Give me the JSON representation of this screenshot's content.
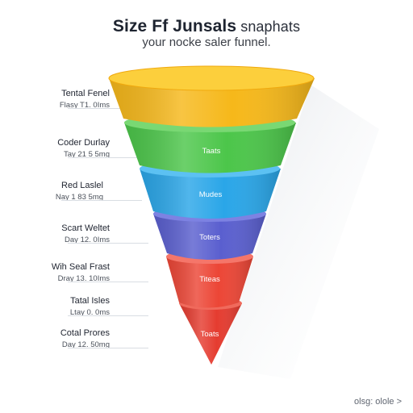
{
  "header": {
    "title": "Size Ff Junsals",
    "title_tail": " snaphats",
    "subtitle": "your nocke saler funnel."
  },
  "stages": [
    {
      "label": "Tental Fenel",
      "meta": "Flasy T1. 0Ims",
      "segment_text": "",
      "color": "#f6b81a"
    },
    {
      "label": "Coder Durlay",
      "meta": "Tay 21 5 5mg",
      "segment_text": "Taats",
      "color": "#4cc64a"
    },
    {
      "label": "Red Laslel",
      "meta": "Nay 1 83 5mg",
      "segment_text": "Mudes",
      "color": "#2aa6e8"
    },
    {
      "label": "Scart Weltet",
      "meta": "Day 12. 0Ims",
      "segment_text": "Toters",
      "color": "#5a5fcf"
    },
    {
      "label": "Wih Seal Frast",
      "meta": "Dray 13. 10Ims",
      "segment_text": "Titeas",
      "color": "#ec4636"
    },
    {
      "label": "Tatal Isles",
      "meta": "Ltay 0. 0ms",
      "segment_text": "",
      "color": "#e53c30"
    },
    {
      "label": "Cotal Prores",
      "meta": "Day 12. 50mg",
      "segment_text": "Toats",
      "color": "#e53c30"
    }
  ],
  "footer": {
    "text": "olsg: olole",
    "chevron": ">"
  }
}
